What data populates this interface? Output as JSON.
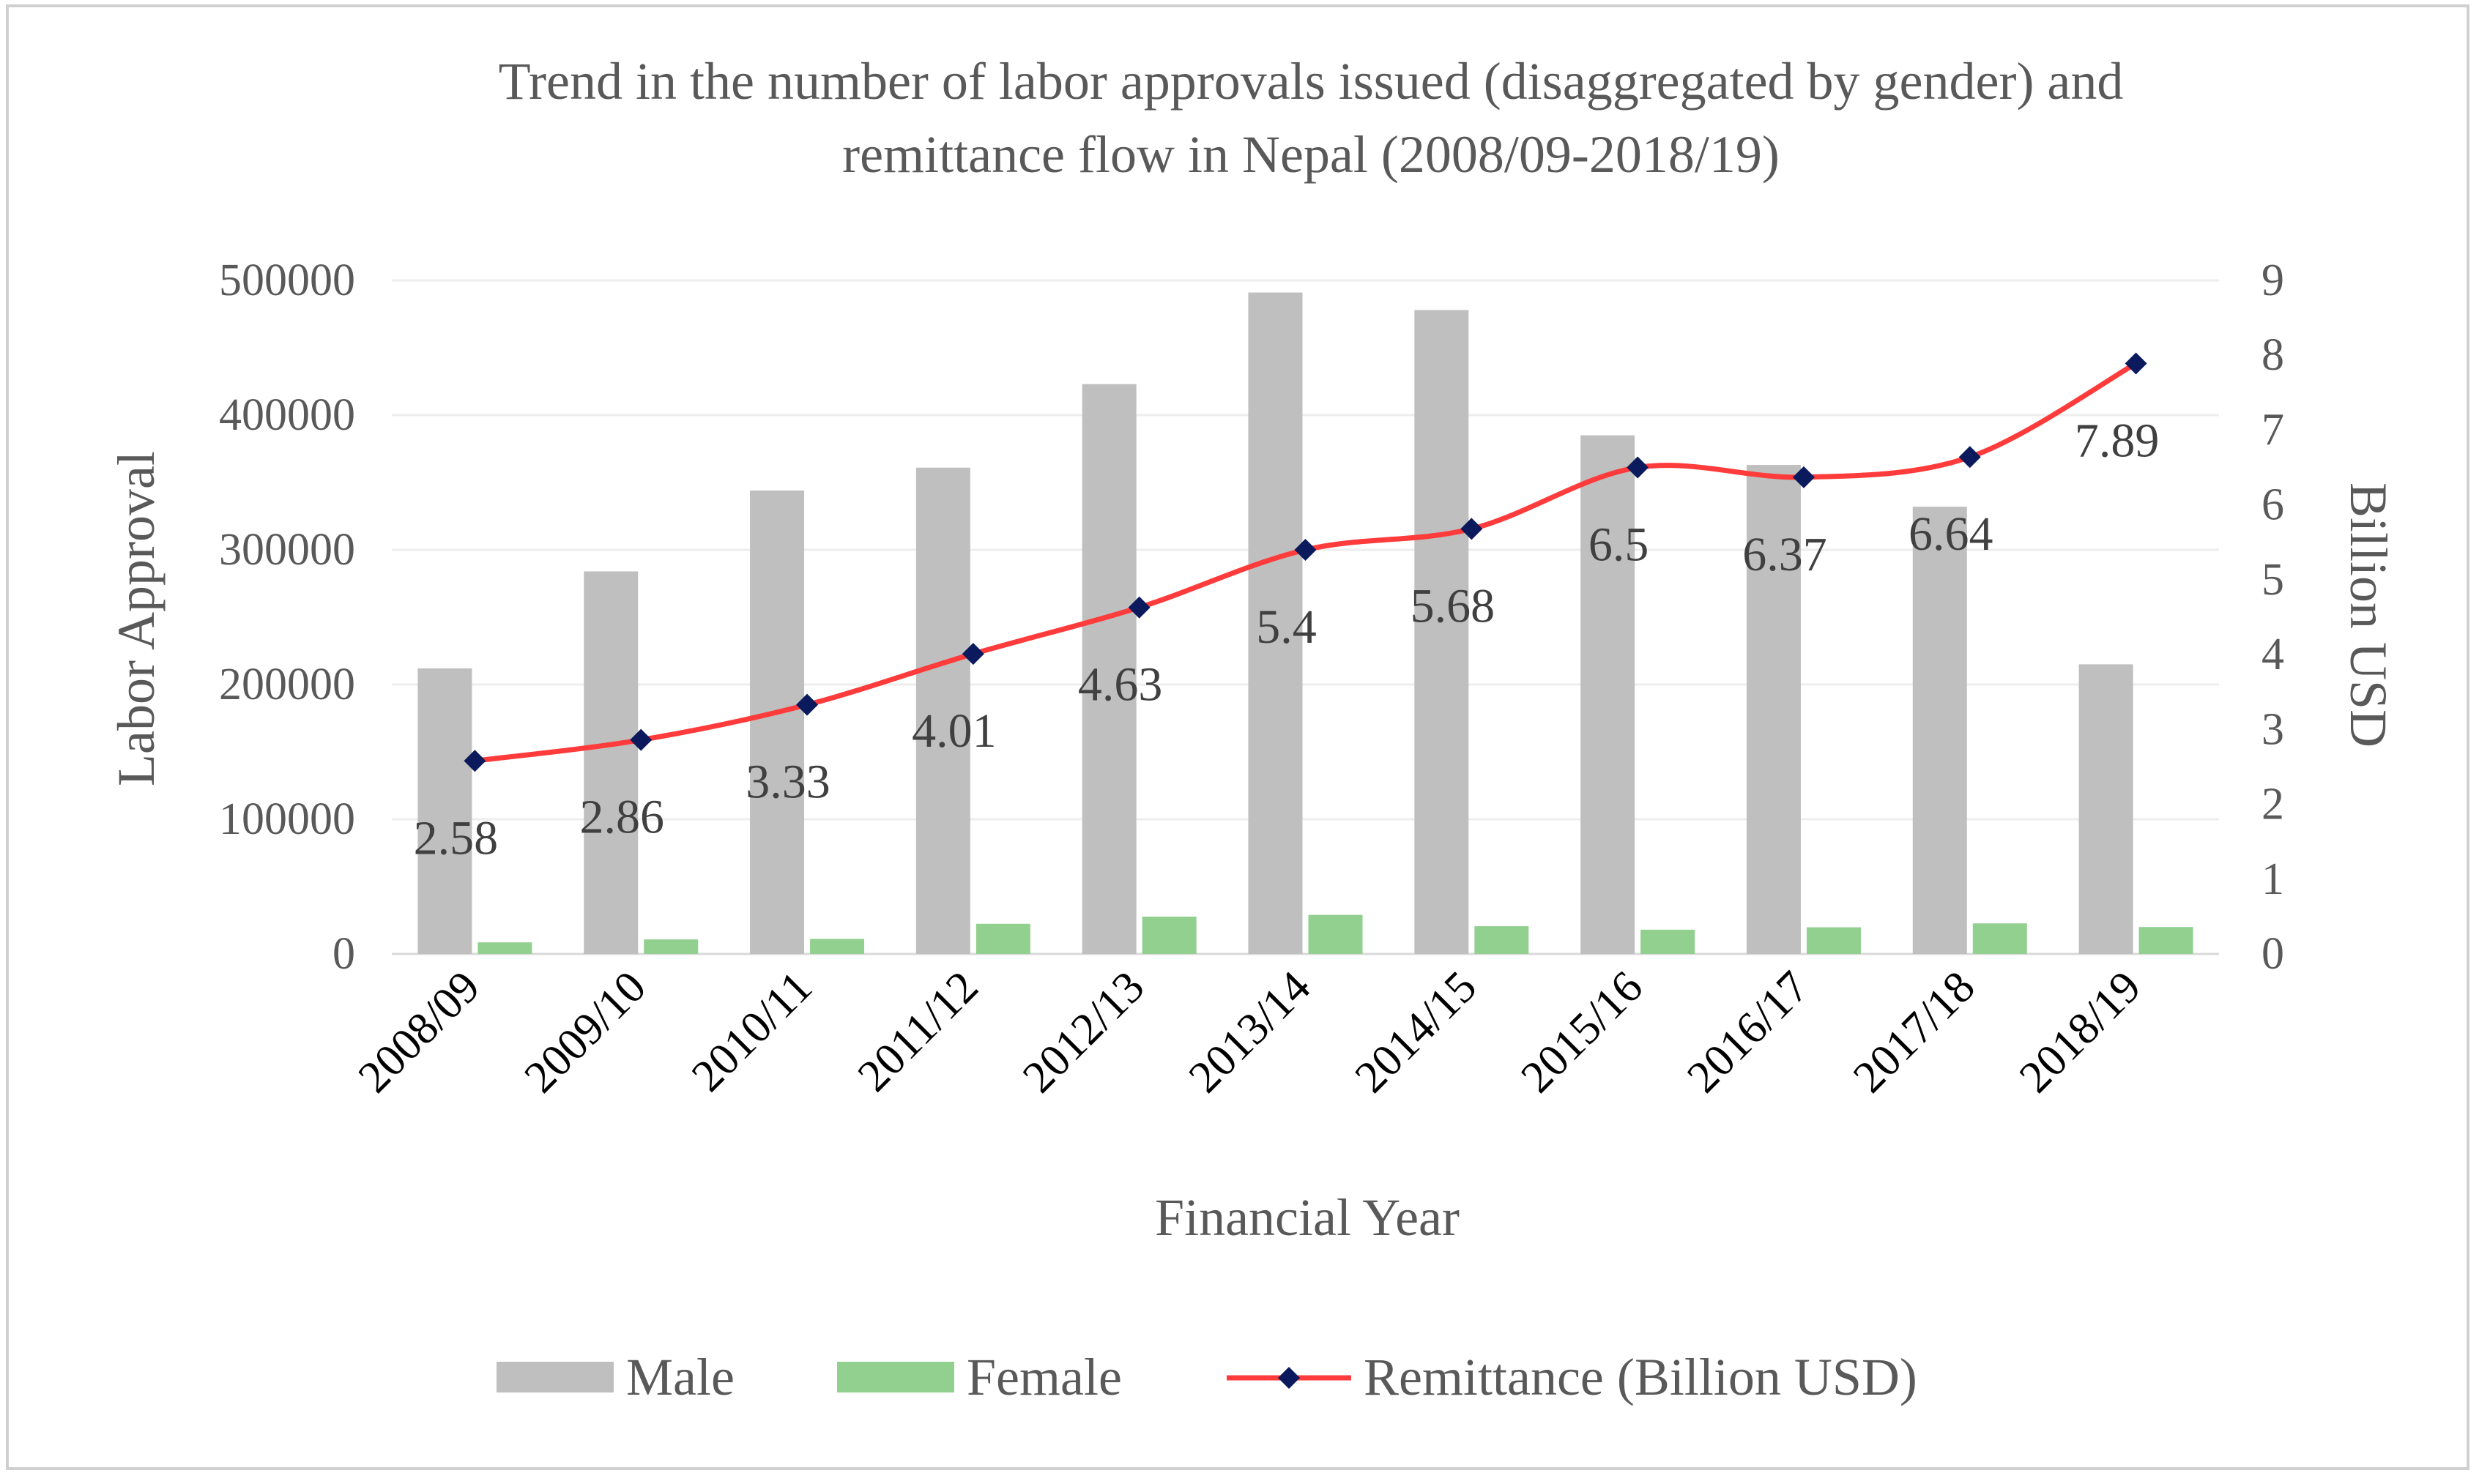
{
  "chart_data": {
    "type": "bar",
    "title_line1": "Trend in the number of labor approvals issued (disaggregated by gender) and",
    "title_line2": "remittance flow in Nepal (2008/09-2018/19)",
    "xlabel": "Financial Year",
    "ylabel": "Labor Approval",
    "y2label": "Billion USD",
    "categories": [
      "2008/09",
      "2009/10",
      "2010/11",
      "2011/12",
      "2012/13",
      "2013/14",
      "2014/15",
      "2015/16",
      "2016/17",
      "2017/18",
      "2018/19"
    ],
    "ylim": [
      0,
      500000
    ],
    "yticks": [
      "0",
      "100000",
      "200000",
      "300000",
      "400000",
      "500000"
    ],
    "y2lim": [
      0,
      9
    ],
    "y2ticks": [
      "0",
      "1",
      "2",
      "3",
      "4",
      "5",
      "6",
      "7",
      "8",
      "9"
    ],
    "series": [
      {
        "name": "Male",
        "kind": "bar",
        "color": "#bfbfbf",
        "values": [
          212000,
          284000,
          344000,
          361000,
          423000,
          491000,
          478000,
          385000,
          363000,
          332000,
          215000
        ]
      },
      {
        "name": "Female",
        "kind": "bar",
        "color": "#92d08f",
        "values": [
          8600,
          10800,
          11200,
          22400,
          27700,
          29000,
          20600,
          18000,
          19800,
          22700,
          20000
        ]
      },
      {
        "name": "Remittance (Billion USD)",
        "kind": "line",
        "axis": "right",
        "color": "#ff3b3b",
        "marker_color": "#0b1a5c",
        "values": [
          2.58,
          2.86,
          3.33,
          4.01,
          4.63,
          5.4,
          5.68,
          6.5,
          6.37,
          6.64,
          7.89
        ],
        "labels": [
          "2.58",
          "2.86",
          "3.33",
          "4.01",
          "4.63",
          "5.4",
          "5.68",
          "6.5",
          "6.37",
          "6.64",
          "7.89"
        ]
      }
    ],
    "legend": {
      "position": "bottom",
      "items": [
        "Male",
        "Female",
        "Remittance (Billion USD)"
      ]
    },
    "grid": true
  }
}
